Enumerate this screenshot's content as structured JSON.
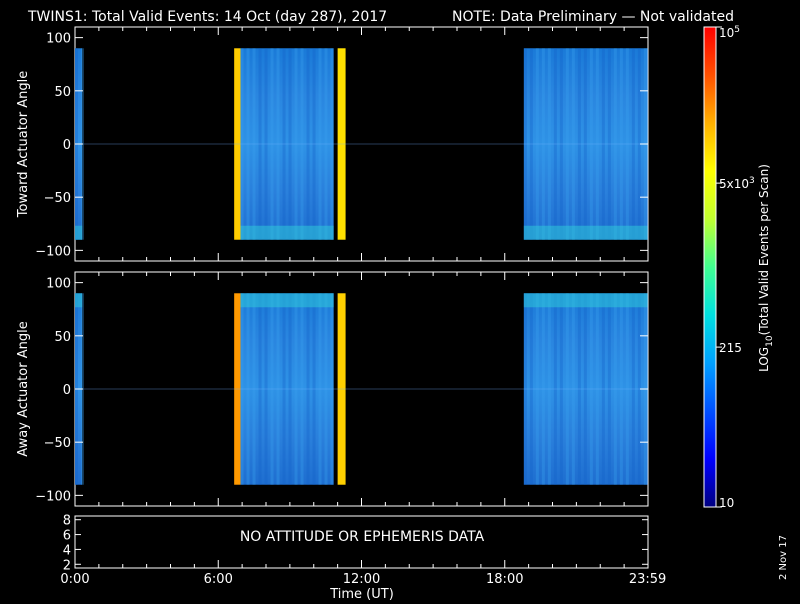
{
  "title": {
    "main": "TWINS1: Total Valid Events: 14 Oct (day 287), 2017",
    "note": "NOTE: Data Preliminary — Not validated",
    "note_color": "#ff2020"
  },
  "footer": {
    "date_stamp": "2 Nov 17"
  },
  "chart_data": [
    {
      "type": "heatmap",
      "ylabel": "Toward Actuator Angle",
      "ylim": [
        -110,
        110
      ],
      "yticks": [
        100,
        50,
        0,
        -50,
        -100
      ],
      "angle_range": [
        -90,
        90
      ],
      "xlim_hours": [
        0,
        24
      ],
      "segments": [
        {
          "start": "0:00",
          "end": "0:18",
          "level": "medium-low"
        },
        {
          "start": "6:40",
          "end": "6:56",
          "level": "high",
          "color": "#ffcc00"
        },
        {
          "start": "6:56",
          "end": "10:50",
          "level": "medium"
        },
        {
          "start": "11:00",
          "end": "11:20",
          "level": "high",
          "color": "#ffe000"
        },
        {
          "start": "18:48",
          "end": "23:59",
          "level": "medium-low"
        }
      ]
    },
    {
      "type": "heatmap",
      "ylabel": "Away Actuator Angle",
      "ylim": [
        -110,
        110
      ],
      "yticks": [
        100,
        50,
        0,
        -50,
        -100
      ],
      "angle_range": [
        -90,
        90
      ],
      "xlim_hours": [
        0,
        24
      ],
      "segments": [
        {
          "start": "0:00",
          "end": "0:18",
          "level": "medium-low"
        },
        {
          "start": "6:40",
          "end": "6:56",
          "level": "high",
          "color": "#ff9900"
        },
        {
          "start": "6:56",
          "end": "10:50",
          "level": "medium"
        },
        {
          "start": "11:00",
          "end": "11:20",
          "level": "high",
          "color": "#ffd000"
        },
        {
          "start": "18:48",
          "end": "23:59",
          "level": "medium-low"
        }
      ]
    },
    {
      "type": "line",
      "ylim": [
        1.5,
        8.5
      ],
      "yticks": [
        8,
        6,
        4,
        2
      ],
      "message": "NO ATTITUDE OR EPHEMERIS DATA",
      "xlabel": "Time (UT)",
      "xticks": [
        "0:00",
        "6:00",
        "12:00",
        "18:00",
        "23:59"
      ],
      "xtick_hours": [
        0,
        6,
        12,
        18,
        23.983
      ]
    }
  ],
  "colorbar": {
    "label": "LOG",
    "label_sub": "10",
    "label_rest": "(Total Valid Events per Scan)",
    "ticks": [
      {
        "base": "10",
        "exp": "5",
        "prefix": "",
        "value": 100000
      },
      {
        "base": "10",
        "exp": "3",
        "prefix": "5x",
        "value": 5000
      },
      {
        "base": "215",
        "exp": "",
        "prefix": "",
        "value": 215
      },
      {
        "base": "10",
        "exp": "",
        "prefix": "",
        "value": 10
      }
    ],
    "range": [
      10,
      100000
    ],
    "colors": [
      "#000080",
      "#0000ff",
      "#0050ff",
      "#00a0ff",
      "#00e0e0",
      "#40ff90",
      "#c0ff30",
      "#ffff00",
      "#ffb000",
      "#ff5000",
      "#ff0000"
    ]
  }
}
